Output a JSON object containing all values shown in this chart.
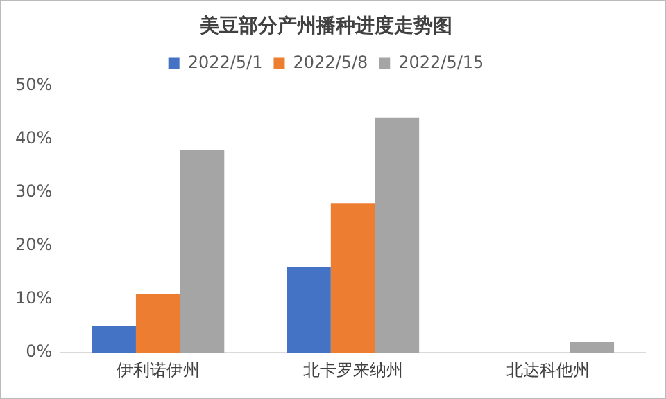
{
  "chart_data": {
    "type": "bar",
    "title": "美豆部分产州播种进度走势图",
    "categories": [
      "伊利诺伊州",
      "北卡罗来纳州",
      "北达科他州"
    ],
    "series": [
      {
        "name": "2022/5/1",
        "color": "#4472c4",
        "values": [
          5,
          16,
          0
        ]
      },
      {
        "name": "2022/5/8",
        "color": "#ed7d31",
        "values": [
          11,
          28,
          0
        ]
      },
      {
        "name": "2022/5/15",
        "color": "#a5a5a5",
        "values": [
          38,
          44,
          2
        ]
      }
    ],
    "ylim": [
      0,
      50
    ],
    "yticks": [
      {
        "value": 0,
        "label": "0%"
      },
      {
        "value": 10,
        "label": "10%"
      },
      {
        "value": 20,
        "label": "20%"
      },
      {
        "value": 30,
        "label": "30%"
      },
      {
        "value": 40,
        "label": "40%"
      },
      {
        "value": 50,
        "label": "50%"
      }
    ],
    "grid": false,
    "legend": "top"
  }
}
